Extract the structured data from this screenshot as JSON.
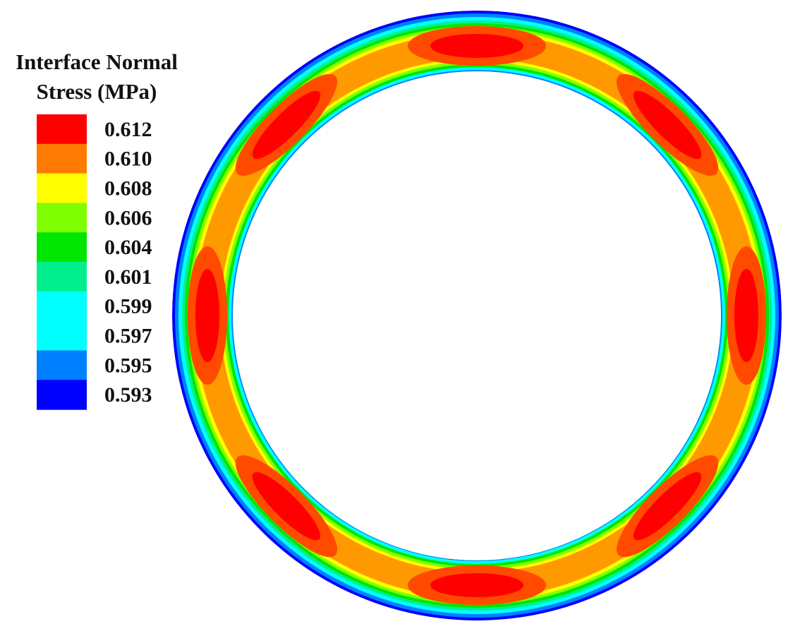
{
  "legend": {
    "title_line1": "Interface Normal",
    "title_line2": "Stress (MPa)",
    "levels": [
      {
        "label": "0.612",
        "value": 0.612,
        "color": "#ff0000"
      },
      {
        "label": "0.610",
        "value": 0.61,
        "color": "#ff7a00"
      },
      {
        "label": "0.608",
        "value": 0.608,
        "color": "#ffff00"
      },
      {
        "label": "0.606",
        "value": 0.606,
        "color": "#80ff00"
      },
      {
        "label": "0.604",
        "value": 0.604,
        "color": "#00e600"
      },
      {
        "label": "0.601",
        "value": 0.601,
        "color": "#00f090"
      },
      {
        "label": "0.599",
        "value": 0.599,
        "color": "#00ffff"
      },
      {
        "label": "0.597",
        "value": 0.597,
        "color": "#00ffff"
      },
      {
        "label": "0.595",
        "value": 0.595,
        "color": "#0080ff"
      },
      {
        "label": "0.593",
        "value": 0.593,
        "color": "#0000ff"
      }
    ]
  },
  "contour": {
    "hotspot_count": 8,
    "hotspot_color": "#ff0000"
  }
}
